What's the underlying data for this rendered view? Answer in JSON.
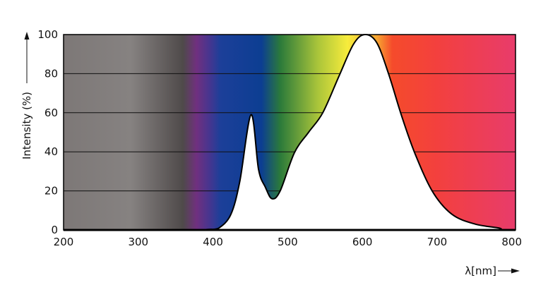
{
  "chart_data": {
    "type": "area",
    "title": "",
    "xlabel": "λ[nm]",
    "ylabel": "Intensity (%)",
    "xlim": [
      200,
      805
    ],
    "ylim": [
      0,
      100
    ],
    "xticks": [
      200,
      300,
      400,
      500,
      600,
      700,
      800
    ],
    "yticks": [
      0,
      20,
      40,
      60,
      80,
      100
    ],
    "grid": "horizontal",
    "background": "visible-spectrum gradient",
    "spectrum_colors": [
      {
        "nm": 200,
        "color": "#7d7877"
      },
      {
        "nm": 290,
        "color": "#868281"
      },
      {
        "nm": 360,
        "color": "#4f4a4a"
      },
      {
        "nm": 378,
        "color": "#70307f"
      },
      {
        "nm": 395,
        "color": "#47358f"
      },
      {
        "nm": 410,
        "color": "#1c3f99"
      },
      {
        "nm": 465,
        "color": "#0c3e92"
      },
      {
        "nm": 490,
        "color": "#2b7a3a"
      },
      {
        "nm": 540,
        "color": "#a9c43a"
      },
      {
        "nm": 580,
        "color": "#f7ec3c"
      },
      {
        "nm": 620,
        "color": "#f7a431"
      },
      {
        "nm": 640,
        "color": "#f54b2b"
      },
      {
        "nm": 700,
        "color": "#f3403e"
      },
      {
        "nm": 805,
        "color": "#e83c6b"
      }
    ],
    "series": [
      {
        "x": [
          380,
          395,
          408,
          424,
          436,
          451,
          461,
          470,
          479,
          490,
          509,
          528,
          547,
          569,
          588,
          603,
          619,
          635,
          652,
          670,
          694,
          720,
          751,
          783,
          785
        ],
        "y": [
          0,
          0.3,
          1,
          8,
          25,
          59,
          31,
          22,
          16,
          20,
          39.5,
          50,
          60,
          79,
          95,
          100,
          96,
          80,
          59,
          39.5,
          19.6,
          8,
          3,
          1,
          0
        ],
        "color": "#000000",
        "fill": "#ffffff"
      }
    ]
  }
}
